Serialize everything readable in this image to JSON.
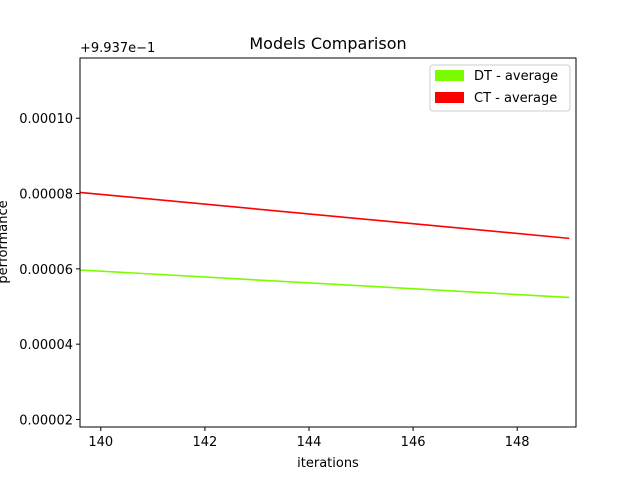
{
  "chart_data": {
    "type": "line",
    "title": "Models Comparison",
    "xlabel": "iterations",
    "ylabel": "performance",
    "y_offset_label": "+9.937e−1",
    "xlim": [
      139.6,
      149.13
    ],
    "ylim": [
      1.8e-05,
      0.000116
    ],
    "x_ticks": [
      {
        "value": 140,
        "label": "140"
      },
      {
        "value": 142,
        "label": "142"
      },
      {
        "value": 144,
        "label": "144"
      },
      {
        "value": 146,
        "label": "146"
      },
      {
        "value": 148,
        "label": "148"
      }
    ],
    "y_ticks": [
      {
        "value": 2e-05,
        "label": "0.00002"
      },
      {
        "value": 4e-05,
        "label": "0.00004"
      },
      {
        "value": 6e-05,
        "label": "0.00006"
      },
      {
        "value": 8e-05,
        "label": "0.00008"
      },
      {
        "value": 0.0001,
        "label": "0.00010"
      }
    ],
    "grid": false,
    "legend_position": "top-right",
    "series": [
      {
        "name": "DT - average",
        "color": "#7cfc00",
        "x": [
          139.6,
          149.0
        ],
        "y": [
          5.97e-05,
          5.24e-05
        ]
      },
      {
        "name": "CT - average",
        "color": "#ff0000",
        "x": [
          139.6,
          149.0
        ],
        "y": [
          8.03e-05,
          6.81e-05
        ]
      }
    ]
  }
}
